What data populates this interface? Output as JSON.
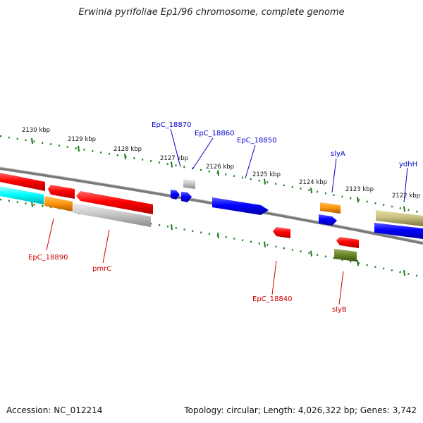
{
  "title": "Erwinia pyrifoliae Ep1/96 chromosome, complete genome",
  "footer": {
    "accession": "Accession: NC_012214",
    "topology": "Topology: circular; Length: 4,026,322 bp; Genes: 3,742"
  },
  "scale": {
    "unit": "kbp",
    "tick_labels": [
      "2130 kbp",
      "2129 kbp",
      "2128 kbp",
      "2127 kbp",
      "2126 kbp",
      "2125 kbp",
      "2124 kbp",
      "2123 kbp",
      "2122 kbp"
    ]
  },
  "genes_top": [
    {
      "label": "EpC_18870"
    },
    {
      "label": "EpC_18860"
    },
    {
      "label": "EpC_18850"
    },
    {
      "label": "slyA"
    },
    {
      "label": "ydhH"
    }
  ],
  "genes_bottom": [
    {
      "label": "EpC_18890"
    },
    {
      "label": "pmrC"
    },
    {
      "label": "EpC_18840"
    },
    {
      "label": "slyB"
    }
  ],
  "colors": {
    "label_forward": "#0000cc",
    "label_reverse": "#cc0000",
    "tick": "#1a7a1a",
    "backbone": "#7a7a7a"
  }
}
